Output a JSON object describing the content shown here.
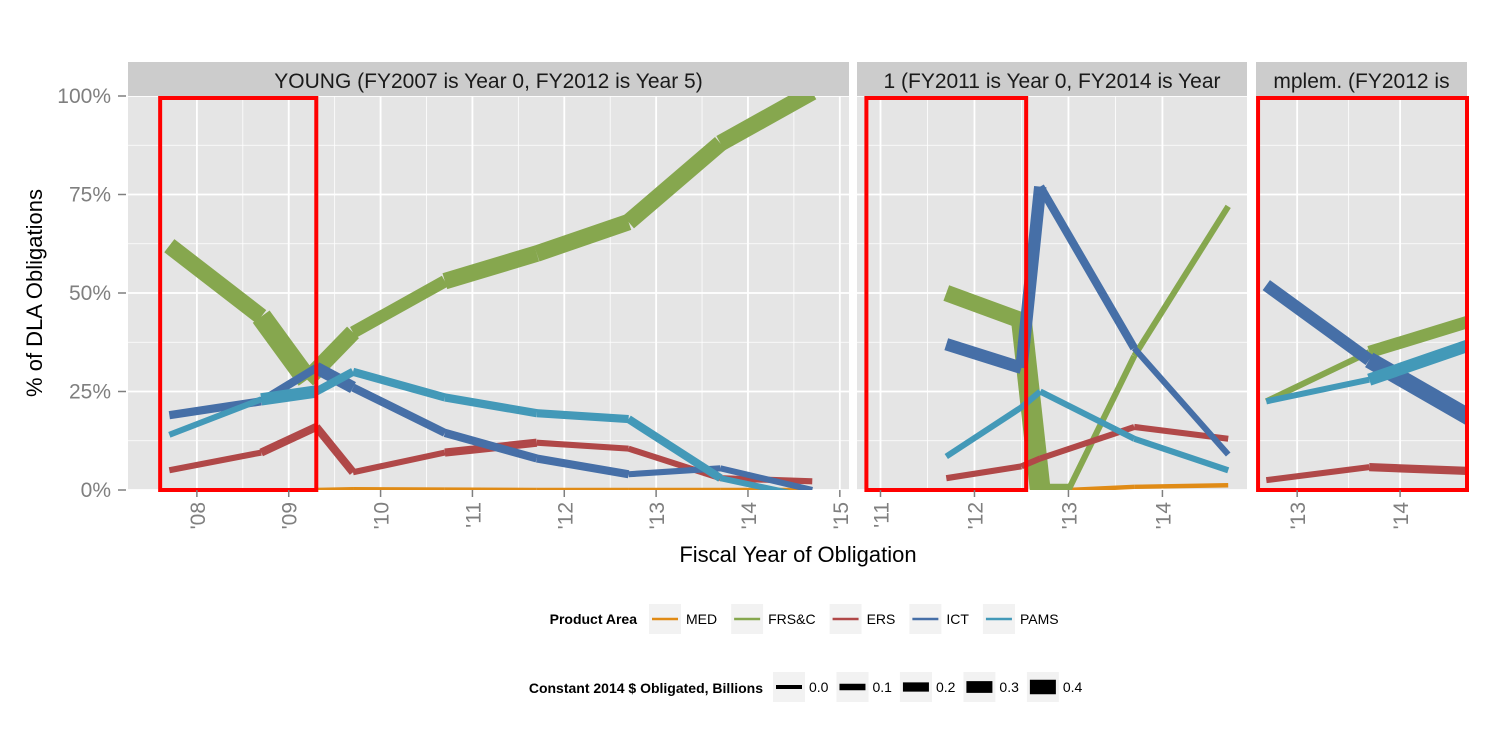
{
  "chart_data": {
    "type": "line",
    "ylabel": "% of  DLA  Obligations",
    "xlabel": "Fiscal Year of Obligation",
    "y_ticks": [
      "0%",
      "25%",
      "50%",
      "75%",
      "100%"
    ],
    "ylim": [
      0,
      1
    ],
    "facets": [
      {
        "title": "YOUNG (FY2007 is Year 0, FY2012 is Year 5)",
        "xlim": [
          2007.25,
          2015.1
        ],
        "x_ticks": [
          {
            "v": 2008,
            "label": "'08"
          },
          {
            "v": 2009,
            "label": "'09"
          },
          {
            "v": 2010,
            "label": "'10"
          },
          {
            "v": 2011,
            "label": "'11"
          },
          {
            "v": 2012,
            "label": "'12"
          },
          {
            "v": 2013,
            "label": "'13"
          },
          {
            "v": 2014,
            "label": "'14"
          },
          {
            "v": 2015,
            "label": "'15"
          }
        ],
        "highlight": [
          2007.6,
          2009.3
        ],
        "series": [
          {
            "name": "MED",
            "points": [
              [
                2009.3,
                0.0,
                0.01
              ],
              [
                2009.7,
                0.002,
                0.01
              ],
              [
                2010.7,
                0.001,
                0.01
              ],
              [
                2011.7,
                0.0,
                0.01
              ],
              [
                2012.7,
                0.0,
                0.01
              ],
              [
                2013.7,
                0.0,
                0.01
              ],
              [
                2014.7,
                0.0,
                0.01
              ]
            ]
          },
          {
            "name": "FRS&C",
            "points": [
              [
                2007.7,
                0.62,
                0.3
              ],
              [
                2008.7,
                0.44,
                0.4
              ],
              [
                2009.2,
                0.28,
                0.3
              ],
              [
                2009.7,
                0.4,
                0.2
              ],
              [
                2010.7,
                0.53,
                0.3
              ],
              [
                2011.7,
                0.6,
                0.3
              ],
              [
                2012.7,
                0.68,
                0.3
              ],
              [
                2013.7,
                0.88,
                0.3
              ],
              [
                2014.7,
                1.01,
                0.3
              ]
            ]
          },
          {
            "name": "ERS",
            "points": [
              [
                2007.7,
                0.05,
                0.05
              ],
              [
                2008.7,
                0.095,
                0.1
              ],
              [
                2009.3,
                0.16,
                0.1
              ],
              [
                2009.7,
                0.045,
                0.05
              ],
              [
                2010.7,
                0.095,
                0.1
              ],
              [
                2011.7,
                0.12,
                0.05
              ],
              [
                2012.7,
                0.105,
                0.05
              ],
              [
                2013.7,
                0.03,
                0.05
              ],
              [
                2014.7,
                0.022,
                0.05
              ]
            ]
          },
          {
            "name": "ICT",
            "points": [
              [
                2007.7,
                0.19,
                0.1
              ],
              [
                2008.7,
                0.225,
                0.1
              ],
              [
                2009.3,
                0.31,
                0.2
              ],
              [
                2009.7,
                0.26,
                0.1
              ],
              [
                2010.7,
                0.145,
                0.1
              ],
              [
                2011.7,
                0.08,
                0.1
              ],
              [
                2012.7,
                0.04,
                0.05
              ],
              [
                2013.7,
                0.055,
                0.05
              ],
              [
                2014.7,
                0.0,
                0.05
              ]
            ]
          },
          {
            "name": "PAMS",
            "points": [
              [
                2007.7,
                0.14,
                0.05
              ],
              [
                2008.7,
                0.23,
                0.2
              ],
              [
                2009.3,
                0.25,
                0.1
              ],
              [
                2009.7,
                0.3,
                0.1
              ],
              [
                2010.7,
                0.235,
                0.1
              ],
              [
                2011.7,
                0.195,
                0.1
              ],
              [
                2012.7,
                0.18,
                0.1
              ],
              [
                2013.7,
                0.03,
                0.05
              ],
              [
                2014.7,
                -0.02,
                0.05
              ]
            ]
          }
        ]
      },
      {
        "title": "1 (FY2011 is Year 0, FY2014 is Year",
        "xlim": [
          2010.75,
          2014.9
        ],
        "x_ticks": [
          {
            "v": 2011,
            "label": "'11"
          },
          {
            "v": 2012,
            "label": "'12"
          },
          {
            "v": 2013,
            "label": "'13"
          },
          {
            "v": 2014,
            "label": "'14"
          }
        ],
        "highlight": [
          2010.85,
          2012.55
        ],
        "series": [
          {
            "name": "MED",
            "points": [
              [
                2013.0,
                0.0,
                0.01
              ],
              [
                2013.7,
                0.008,
                0.01
              ],
              [
                2014.7,
                0.012,
                0.01
              ]
            ]
          },
          {
            "name": "FRS&C",
            "points": [
              [
                2011.7,
                0.5,
                0.3
              ],
              [
                2012.5,
                0.43,
                0.4
              ],
              [
                2012.7,
                0.0,
                0.2
              ],
              [
                2013.0,
                0.0,
                0.05
              ],
              [
                2013.7,
                0.34,
                0.05
              ],
              [
                2014.7,
                0.72,
                0.05
              ]
            ]
          },
          {
            "name": "ERS",
            "points": [
              [
                2011.7,
                0.03,
                0.05
              ],
              [
                2012.5,
                0.06,
                0.05
              ],
              [
                2012.7,
                0.08,
                0.05
              ],
              [
                2013.7,
                0.16,
                0.05
              ],
              [
                2014.7,
                0.13,
                0.05
              ]
            ]
          },
          {
            "name": "ICT",
            "points": [
              [
                2011.7,
                0.37,
                0.2
              ],
              [
                2012.5,
                0.31,
                0.2
              ],
              [
                2012.7,
                0.77,
                0.1
              ],
              [
                2013.7,
                0.36,
                0.05
              ],
              [
                2014.7,
                0.09,
                0.1
              ]
            ]
          },
          {
            "name": "PAMS",
            "points": [
              [
                2011.7,
                0.085,
                0.05
              ],
              [
                2012.5,
                0.21,
                0.05
              ],
              [
                2012.7,
                0.25,
                0.05
              ],
              [
                2013.7,
                0.13,
                0.05
              ],
              [
                2014.7,
                0.05,
                0.05
              ]
            ]
          }
        ]
      },
      {
        "title": "mplem. (FY2012 is",
        "xlim": [
          2012.6,
          2014.65
        ],
        "x_ticks": [
          {
            "v": 2013,
            "label": "'13"
          },
          {
            "v": 2014,
            "label": "'14"
          }
        ],
        "highlight": [
          2012.62,
          2014.65
        ],
        "series": [
          {
            "name": "ERS",
            "points": [
              [
                2012.7,
                0.025,
                0.05
              ],
              [
                2013.7,
                0.058,
                0.1
              ],
              [
                2014.7,
                0.048,
                0.1
              ]
            ]
          },
          {
            "name": "FRS&C",
            "points": [
              [
                2012.7,
                0.225,
                0.05
              ],
              [
                2013.7,
                0.35,
                0.2
              ],
              [
                2014.7,
                0.43,
                0.3
              ]
            ]
          },
          {
            "name": "ICT",
            "points": [
              [
                2012.7,
                0.52,
                0.2
              ],
              [
                2013.7,
                0.33,
                0.3
              ],
              [
                2014.7,
                0.18,
                0.2
              ]
            ]
          },
          {
            "name": "PAMS",
            "points": [
              [
                2012.7,
                0.225,
                0.05
              ],
              [
                2013.7,
                0.28,
                0.2
              ],
              [
                2014.7,
                0.37,
                0.2
              ]
            ]
          }
        ]
      }
    ],
    "legend_color": {
      "title": "Product Area",
      "placement": "bottom",
      "items": [
        {
          "name": "MED",
          "color": "#E08B16"
        },
        {
          "name": "FRS&C",
          "color": "#86A74E"
        },
        {
          "name": "ERS",
          "color": "#B04848"
        },
        {
          "name": "ICT",
          "color": "#466FA7"
        },
        {
          "name": "PAMS",
          "color": "#4399B8"
        }
      ]
    },
    "legend_size": {
      "title": "Constant 2014 $ Obligated, Billions",
      "placement": "bottom",
      "items": [
        {
          "label": "0.0",
          "value": 0.0
        },
        {
          "label": "0.1",
          "value": 0.1
        },
        {
          "label": "0.2",
          "value": 0.2
        },
        {
          "label": "0.3",
          "value": 0.3
        },
        {
          "label": "0.4",
          "value": 0.4
        }
      ]
    },
    "highlight_color": "#FF0000",
    "panel_background": "#E5E5E5",
    "strip_background": "#CCCCCC",
    "grid": true
  }
}
